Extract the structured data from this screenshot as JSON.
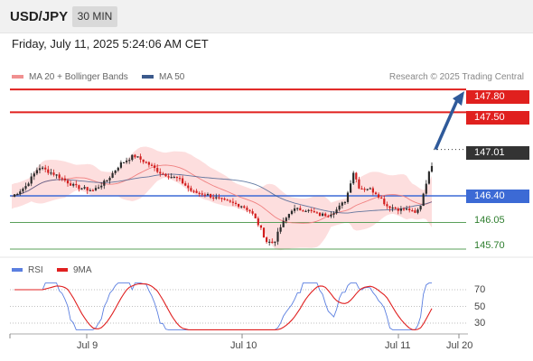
{
  "header": {
    "symbol": "USD/JPY",
    "timeframe": "30 MIN",
    "datetime": "Friday, July 11, 2025 5:24:06 AM CET"
  },
  "legend": {
    "ma20_label": "MA 20 + Bollinger Bands",
    "ma50_label": "MA 50",
    "credit": "Research © 2025 Trading Central"
  },
  "price_levels": [
    {
      "value": "147.80",
      "style": "red"
    },
    {
      "value": "147.50",
      "style": "red"
    },
    {
      "value": "147.01",
      "style": "dark"
    },
    {
      "value": "146.40",
      "style": "blue"
    },
    {
      "value": "146.05",
      "style": "green"
    },
    {
      "value": "145.70",
      "style": "green"
    }
  ],
  "rsi": {
    "rsi_label": "RSI",
    "ma_label": "9MA",
    "ticks": [
      "70",
      "50",
      "30"
    ]
  },
  "x_axis": {
    "labels": [
      "Jul 9",
      "Jul 10",
      "Jul 11",
      "Jul 20"
    ]
  },
  "colors": {
    "resistance": "#e0201e",
    "pivot": "#3c6ad5",
    "support": "#5aa05a",
    "candle_up": "#2b2b2b",
    "candle_down": "#d21e1e",
    "bollinger_fill": "#fdd8d8",
    "ma20": "#f08080",
    "ma50": "#3c5a8c",
    "arrow": "#2f5a9a",
    "rsi_line": "#5b7fe0",
    "rsi_ma": "#e02020"
  },
  "chart_data": {
    "type": "candlestick",
    "instrument": "USD/JPY",
    "interval": "30 MIN",
    "levels": {
      "resistance": [
        147.8,
        147.5
      ],
      "last": 147.01,
      "pivot": 146.4,
      "support": [
        146.05,
        145.7
      ]
    },
    "forecast_target": 147.8,
    "rsi_levels": [
      70,
      50,
      30
    ],
    "x_tick_labels": [
      "Jul 9",
      "Jul 10",
      "Jul 11",
      "Jul 20"
    ]
  }
}
